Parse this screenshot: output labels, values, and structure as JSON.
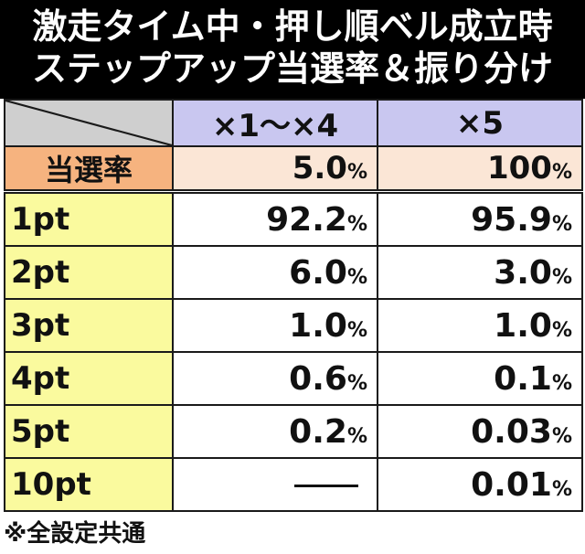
{
  "title": {
    "line1": "激走タイム中・押し順ベル成立時",
    "line2": "ステップアップ当選率＆振り分け"
  },
  "header": {
    "col1": "×1〜×4",
    "col2": "×5"
  },
  "rate_row": {
    "label": "当選率",
    "col1_value": "5.0",
    "col2_value": "100",
    "unit": "%"
  },
  "rows": [
    {
      "label": "1pt",
      "col1": "92.2",
      "col2": "95.9"
    },
    {
      "label": "2pt",
      "col1": "6.0",
      "col2": "3.0"
    },
    {
      "label": "3pt",
      "col1": "1.0",
      "col2": "1.0"
    },
    {
      "label": "4pt",
      "col1": "0.6",
      "col2": "0.1"
    },
    {
      "label": "5pt",
      "col1": "0.2",
      "col2": "0.03"
    },
    {
      "label": "10pt",
      "col1": "―",
      "col2": "0.01"
    }
  ],
  "unit": "%",
  "footnote": "※全設定共通",
  "colors": {
    "title_bg": "#000000",
    "header_bg": "#c9c7f0",
    "rate_label_bg": "#f6b37f",
    "rate_value_bg": "#fbe6d6",
    "pt_label_bg": "#fafa9e",
    "corner_bg": "#cfcfcf"
  }
}
